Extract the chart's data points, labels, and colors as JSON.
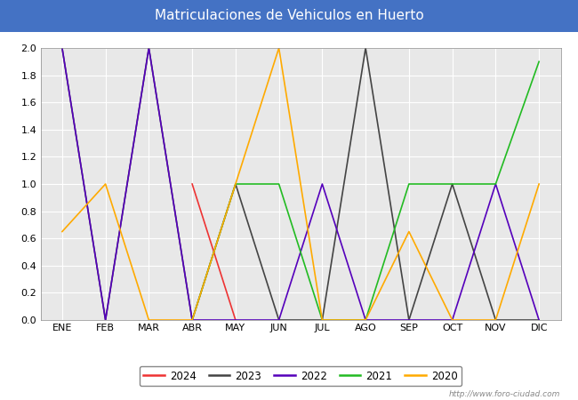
{
  "title": "Matriculaciones de Vehiculos en Huerto",
  "title_bg_color": "#4472C4",
  "title_text_color": "white",
  "months": [
    "ENE",
    "FEB",
    "MAR",
    "ABR",
    "MAY",
    "JUN",
    "JUL",
    "AGO",
    "SEP",
    "OCT",
    "NOV",
    "DIC"
  ],
  "ylim": [
    0.0,
    2.0
  ],
  "yticks": [
    0.0,
    0.2,
    0.4,
    0.6,
    0.8,
    1.0,
    1.2,
    1.4,
    1.6,
    1.8,
    2.0
  ],
  "series": {
    "2024": {
      "color": "#EE3333",
      "data": [
        null,
        null,
        null,
        1.0,
        0.0,
        null,
        null,
        null,
        null,
        null,
        null,
        null
      ]
    },
    "2023": {
      "color": "#444444",
      "data": [
        2.0,
        0.0,
        2.0,
        0.0,
        1.0,
        0.0,
        0.0,
        2.0,
        0.0,
        1.0,
        0.0,
        0.0
      ]
    },
    "2022": {
      "color": "#5500BB",
      "data": [
        2.0,
        0.0,
        2.0,
        0.0,
        0.0,
        0.0,
        1.0,
        0.0,
        0.0,
        0.0,
        1.0,
        0.0
      ]
    },
    "2021": {
      "color": "#22BB22",
      "data": [
        null,
        null,
        null,
        0.0,
        1.0,
        1.0,
        0.0,
        0.0,
        1.0,
        1.0,
        1.0,
        1.9
      ]
    },
    "2020": {
      "color": "#FFAA00",
      "data": [
        0.65,
        1.0,
        0.0,
        0.0,
        1.0,
        2.0,
        0.0,
        0.0,
        0.65,
        0.0,
        0.0,
        1.0
      ]
    }
  },
  "legend_order": [
    "2024",
    "2023",
    "2022",
    "2021",
    "2020"
  ],
  "watermark": "http://www.foro-ciudad.com",
  "plot_bg_color": "#E8E8E8",
  "grid_color": "white",
  "fig_bg_color": "white",
  "title_fontsize": 11,
  "tick_fontsize": 8
}
